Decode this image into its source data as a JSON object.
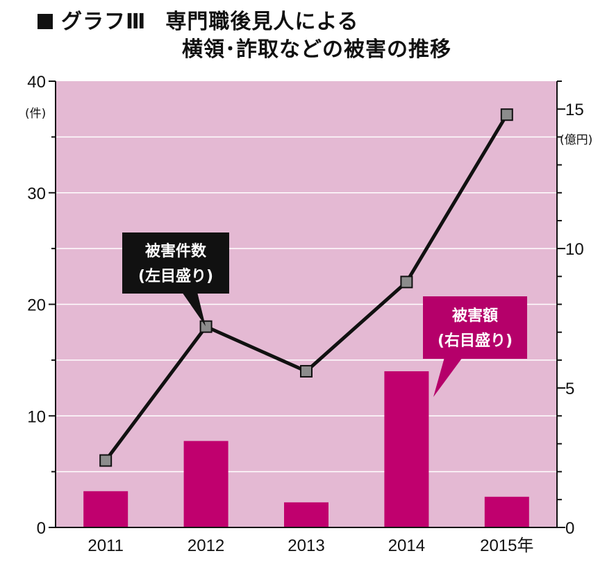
{
  "title": {
    "prefix": "グラフⅢ",
    "line1": "専門職後見人による",
    "line2": "横領･詐取などの被害の推移"
  },
  "colors": {
    "plot_background": "#e4b9d3",
    "bar": "#c0006e",
    "line": "#111111",
    "marker": "#8c8c8c",
    "callout_count": "#111111",
    "callout_amount": "#b5006a"
  },
  "chart_data": {
    "type": "bar+line",
    "categories": [
      "2011",
      "2012",
      "2013",
      "2014",
      "2015年"
    ],
    "left_axis": {
      "unit": "(件)",
      "ylim": [
        0,
        40
      ],
      "ticks": [
        "0",
        "10",
        "20",
        "30",
        "40"
      ]
    },
    "right_axis": {
      "unit": "(億円)",
      "ylim": [
        0,
        16
      ],
      "ticks": [
        "0",
        "5",
        "10",
        "15"
      ]
    },
    "series": [
      {
        "name": "被害件数(左目盛り)",
        "kind": "line",
        "axis": "left",
        "values": [
          6,
          18,
          14,
          22,
          37
        ]
      },
      {
        "name": "被害額(右目盛り)",
        "kind": "bar",
        "axis": "right",
        "values": [
          1.3,
          3.1,
          0.9,
          5.6,
          1.1
        ]
      }
    ],
    "callouts": {
      "count": {
        "line1": "被害件数",
        "line2": "(左目盛り)"
      },
      "amount": {
        "line1": "被害額",
        "line2": "(右目盛り)"
      }
    },
    "grid": true
  }
}
